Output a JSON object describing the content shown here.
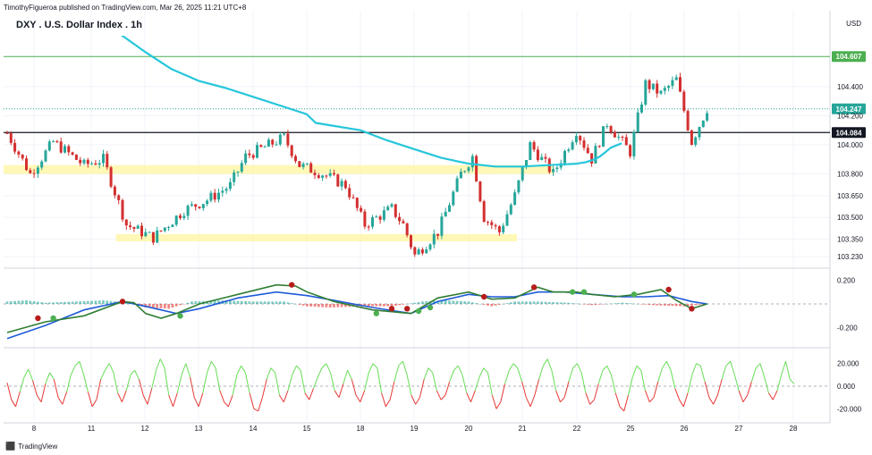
{
  "header": {
    "attribution": "TimothyFigueroa published on TradingView.com, Mar 26, 2025 11:21 UTC+8",
    "title": "DXY . U.S. Dollar Index . 1h",
    "currency": "USD"
  },
  "footer": {
    "brand": "TradingView",
    "brand_icon": "tradingview-logo-icon"
  },
  "colors": {
    "candle_up": "#26a69a",
    "candle_down": "#d32f2f",
    "ma": "#26c6da",
    "zone": "#fff59d",
    "resistance_line": "#4caf50",
    "support_line": "#131722",
    "fast_line": "#2e7d32",
    "slow_line": "#1e5bd8",
    "signal_bear": "#b71c1c",
    "osc_up": "#66dd55",
    "osc_down": "#e53935"
  },
  "chart_data": [
    {
      "type": "candlestick",
      "symbol": "DXY",
      "timeframe": "1h",
      "x_ticks": [
        "8",
        "11",
        "12",
        "13",
        "14",
        "15",
        "18",
        "19",
        "20",
        "21",
        "22",
        "25",
        "26",
        "27",
        "28"
      ],
      "y_ticks": [
        "104.400",
        "104.200",
        "104.000",
        "103.800",
        "103.650",
        "103.500",
        "103.350",
        "103.230"
      ],
      "ylim": [
        103.2,
        104.75
      ],
      "price_labels": [
        {
          "label": "104.607",
          "value": 104.607,
          "kind": "resistance"
        },
        {
          "label": "104.247",
          "value": 104.247,
          "kind": "last"
        },
        {
          "label": "104.084",
          "value": 104.084,
          "kind": "support"
        }
      ],
      "zones": [
        {
          "from_day": 7.7,
          "to_day": 21.58,
          "low": 103.8,
          "high": 103.86
        },
        {
          "from_day": 11.46,
          "to_day": 20.9,
          "low": 103.34,
          "high": 103.36
        }
      ],
      "ma": [
        [
          11.2,
          104.85
        ],
        [
          12,
          104.64
        ],
        [
          12.5,
          104.52
        ],
        [
          13,
          104.44
        ],
        [
          13.5,
          104.39
        ],
        [
          14,
          104.33
        ],
        [
          14.5,
          104.27
        ],
        [
          15,
          104.21
        ],
        [
          15.5,
          104.15
        ],
        [
          18,
          104.1
        ],
        [
          18.5,
          104.03
        ],
        [
          19,
          103.97
        ],
        [
          19.5,
          103.91
        ],
        [
          20,
          103.87
        ],
        [
          20.5,
          103.85
        ],
        [
          21,
          103.85
        ],
        [
          21.5,
          103.86
        ],
        [
          22,
          103.87
        ],
        [
          22.5,
          103.88
        ],
        [
          23,
          103.9
        ],
        [
          23.3,
          103.92
        ],
        [
          23.6,
          103.95
        ],
        [
          23.9,
          103.98
        ],
        [
          24.5,
          104.01
        ]
      ],
      "ohlc_anchors": [
        [
          0,
          104.08
        ],
        [
          6,
          103.8
        ],
        [
          12,
          104.02
        ],
        [
          20,
          103.86
        ],
        [
          25,
          103.9
        ],
        [
          31,
          103.45
        ],
        [
          38,
          103.36
        ],
        [
          46,
          103.55
        ],
        [
          52,
          103.62
        ],
        [
          58,
          103.72
        ],
        [
          62,
          103.92
        ],
        [
          72,
          104.05
        ],
        [
          76,
          103.86
        ],
        [
          82,
          103.8
        ],
        [
          88,
          103.72
        ],
        [
          93,
          103.45
        ],
        [
          100,
          103.56
        ],
        [
          103,
          103.45
        ],
        [
          106,
          103.24
        ],
        [
          112,
          103.4
        ],
        [
          118,
          103.8
        ],
        [
          121,
          103.92
        ],
        [
          124,
          103.5
        ],
        [
          128,
          103.4
        ],
        [
          132,
          103.65
        ],
        [
          136,
          104.0
        ],
        [
          142,
          103.8
        ],
        [
          148,
          104.1
        ],
        [
          152,
          103.9
        ],
        [
          156,
          104.15
        ],
        [
          162,
          103.95
        ],
        [
          166,
          104.42
        ],
        [
          170,
          104.35
        ],
        [
          174,
          104.45
        ],
        [
          178,
          104.02
        ],
        [
          182,
          104.25
        ]
      ]
    },
    {
      "type": "line",
      "panel": "oscillator-1",
      "y_ticks": [
        "0.200",
        "-0.200"
      ],
      "ylim": [
        -0.33,
        0.27
      ],
      "fast": [
        [
          0,
          -0.24
        ],
        [
          10,
          -0.15
        ],
        [
          20,
          -0.1
        ],
        [
          30,
          0.02
        ],
        [
          33,
          0.01
        ],
        [
          36,
          -0.08
        ],
        [
          40,
          -0.12
        ],
        [
          44,
          -0.08
        ],
        [
          50,
          0.0
        ],
        [
          60,
          0.08
        ],
        [
          70,
          0.16
        ],
        [
          75,
          0.15
        ],
        [
          78,
          0.1
        ],
        [
          85,
          0.02
        ],
        [
          95,
          -0.05
        ],
        [
          105,
          -0.08
        ],
        [
          112,
          0.05
        ],
        [
          120,
          0.1
        ],
        [
          126,
          0.04
        ],
        [
          132,
          0.05
        ],
        [
          138,
          0.14
        ],
        [
          142,
          0.1
        ],
        [
          148,
          0.1
        ],
        [
          152,
          0.08
        ],
        [
          158,
          0.06
        ],
        [
          164,
          0.08
        ],
        [
          170,
          0.12
        ],
        [
          174,
          0.03
        ],
        [
          178,
          -0.04
        ],
        [
          182,
          0.0
        ]
      ],
      "slow": [
        [
          0,
          -0.29
        ],
        [
          10,
          -0.18
        ],
        [
          20,
          -0.05
        ],
        [
          30,
          0.02
        ],
        [
          36,
          -0.02
        ],
        [
          44,
          -0.08
        ],
        [
          50,
          -0.04
        ],
        [
          60,
          0.05
        ],
        [
          70,
          0.1
        ],
        [
          78,
          0.07
        ],
        [
          85,
          0.03
        ],
        [
          95,
          -0.03
        ],
        [
          105,
          -0.08
        ],
        [
          112,
          0.02
        ],
        [
          120,
          0.08
        ],
        [
          126,
          0.06
        ],
        [
          132,
          0.06
        ],
        [
          138,
          0.1
        ],
        [
          145,
          0.1
        ],
        [
          152,
          0.08
        ],
        [
          160,
          0.06
        ],
        [
          166,
          0.06
        ],
        [
          172,
          0.07
        ],
        [
          178,
          0.02
        ],
        [
          182,
          0.0
        ]
      ],
      "hist": [
        [
          0,
          0.02
        ],
        [
          5,
          0.03
        ],
        [
          10,
          0.01
        ],
        [
          18,
          0.02
        ],
        [
          25,
          0.03
        ],
        [
          32,
          0.01
        ],
        [
          36,
          -0.03
        ],
        [
          42,
          -0.04
        ],
        [
          48,
          0.02
        ],
        [
          56,
          0.03
        ],
        [
          64,
          0.02
        ],
        [
          72,
          0.02
        ],
        [
          78,
          -0.02
        ],
        [
          84,
          -0.03
        ],
        [
          92,
          -0.02
        ],
        [
          100,
          -0.02
        ],
        [
          108,
          0.02
        ],
        [
          114,
          0.03
        ],
        [
          120,
          0.02
        ],
        [
          126,
          -0.02
        ],
        [
          132,
          0.02
        ],
        [
          138,
          0.02
        ],
        [
          146,
          0.01
        ],
        [
          152,
          -0.01
        ],
        [
          160,
          0.01
        ],
        [
          168,
          -0.01
        ],
        [
          176,
          -0.02
        ],
        [
          182,
          0.0
        ]
      ],
      "dots_bear": [
        [
          8,
          -0.12
        ],
        [
          30,
          0.02
        ],
        [
          74,
          0.16
        ],
        [
          100,
          -0.04
        ],
        [
          104,
          -0.04
        ],
        [
          124,
          0.06
        ],
        [
          137,
          0.14
        ],
        [
          172,
          0.12
        ],
        [
          178,
          -0.04
        ]
      ],
      "dots_bull": [
        [
          12,
          -0.12
        ],
        [
          45,
          -0.1
        ],
        [
          96,
          -0.08
        ],
        [
          107,
          -0.06
        ],
        [
          110,
          -0.03
        ],
        [
          147,
          0.1
        ],
        [
          150,
          0.1
        ],
        [
          163,
          0.08
        ]
      ]
    },
    {
      "type": "line",
      "panel": "oscillator-2",
      "y_ticks": [
        "20.000",
        "0.000",
        "-20.000"
      ],
      "ylim": [
        -30,
        30
      ],
      "baseline": 0,
      "values": [
        3,
        -12,
        -18,
        -5,
        8,
        15,
        5,
        -8,
        -14,
        2,
        12,
        6,
        -10,
        -16,
        -5,
        10,
        18,
        22,
        10,
        -5,
        -18,
        -12,
        6,
        14,
        20,
        12,
        -6,
        -14,
        -4,
        10,
        14,
        6,
        -8,
        -16,
        -2,
        14,
        24,
        16,
        -8,
        -18,
        -6,
        10,
        20,
        8,
        -10,
        -18,
        -6,
        12,
        22,
        16,
        -4,
        -14,
        -18,
        -8,
        10,
        18,
        12,
        -6,
        -20,
        -22,
        -10,
        6,
        16,
        12,
        -8,
        -14,
        -4,
        10,
        18,
        14,
        -6,
        -12,
        -2,
        8,
        16,
        20,
        12,
        -4,
        -10,
        2,
        14,
        6,
        -8,
        -14,
        -4,
        12,
        20,
        16,
        -6,
        -18,
        -12,
        4,
        18,
        22,
        10,
        -8,
        -16,
        -10,
        6,
        16,
        12,
        -4,
        -12,
        -8,
        4,
        14,
        18,
        10,
        -6,
        -14,
        -4,
        8,
        16,
        12,
        -8,
        -20,
        -14,
        2,
        14,
        20,
        16,
        4,
        -10,
        -18,
        -8,
        6,
        18,
        24,
        14,
        -4,
        -14,
        -10,
        4,
        16,
        20,
        12,
        -6,
        -16,
        -12,
        2,
        14,
        18,
        10,
        -6,
        -18,
        -22,
        -8,
        8,
        18,
        14,
        -4,
        -14,
        -10,
        4,
        16,
        22,
        14,
        -2,
        -12,
        -18,
        -6,
        10,
        20,
        18,
        4,
        -10,
        -16,
        -8,
        6,
        18,
        22,
        10,
        -4,
        -14,
        -8,
        4,
        16,
        20,
        8,
        -6,
        -12,
        -4,
        10,
        22,
        6,
        2
      ]
    }
  ]
}
